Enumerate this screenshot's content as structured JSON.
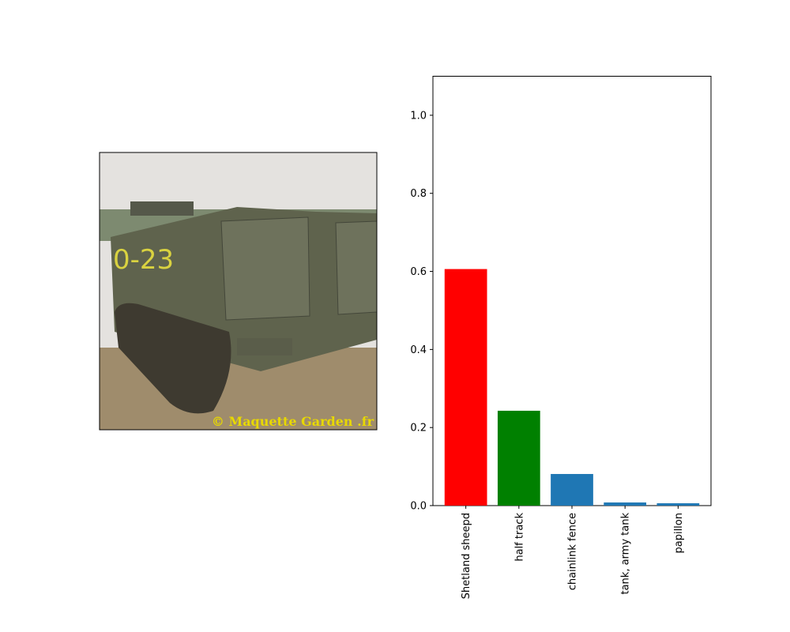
{
  "image": {
    "watermark": "© Maquette Garden .fr"
  },
  "chart_data": {
    "type": "bar",
    "categories": [
      "Shetland sheepd",
      "half track",
      "chainlink fence",
      "tank, army tank",
      "papillon"
    ],
    "values": [
      0.606,
      0.243,
      0.081,
      0.008,
      0.006
    ],
    "colors": [
      "#ff0000",
      "#008000",
      "#1f77b4",
      "#1f77b4",
      "#1f77b4"
    ],
    "ylim": [
      0,
      1.1
    ],
    "yticks": [
      {
        "value": 0,
        "label": "0.0"
      },
      0.2,
      0.4,
      0.6,
      0.8,
      {
        "value": 1,
        "label": "1.0"
      }
    ],
    "grid": false
  }
}
